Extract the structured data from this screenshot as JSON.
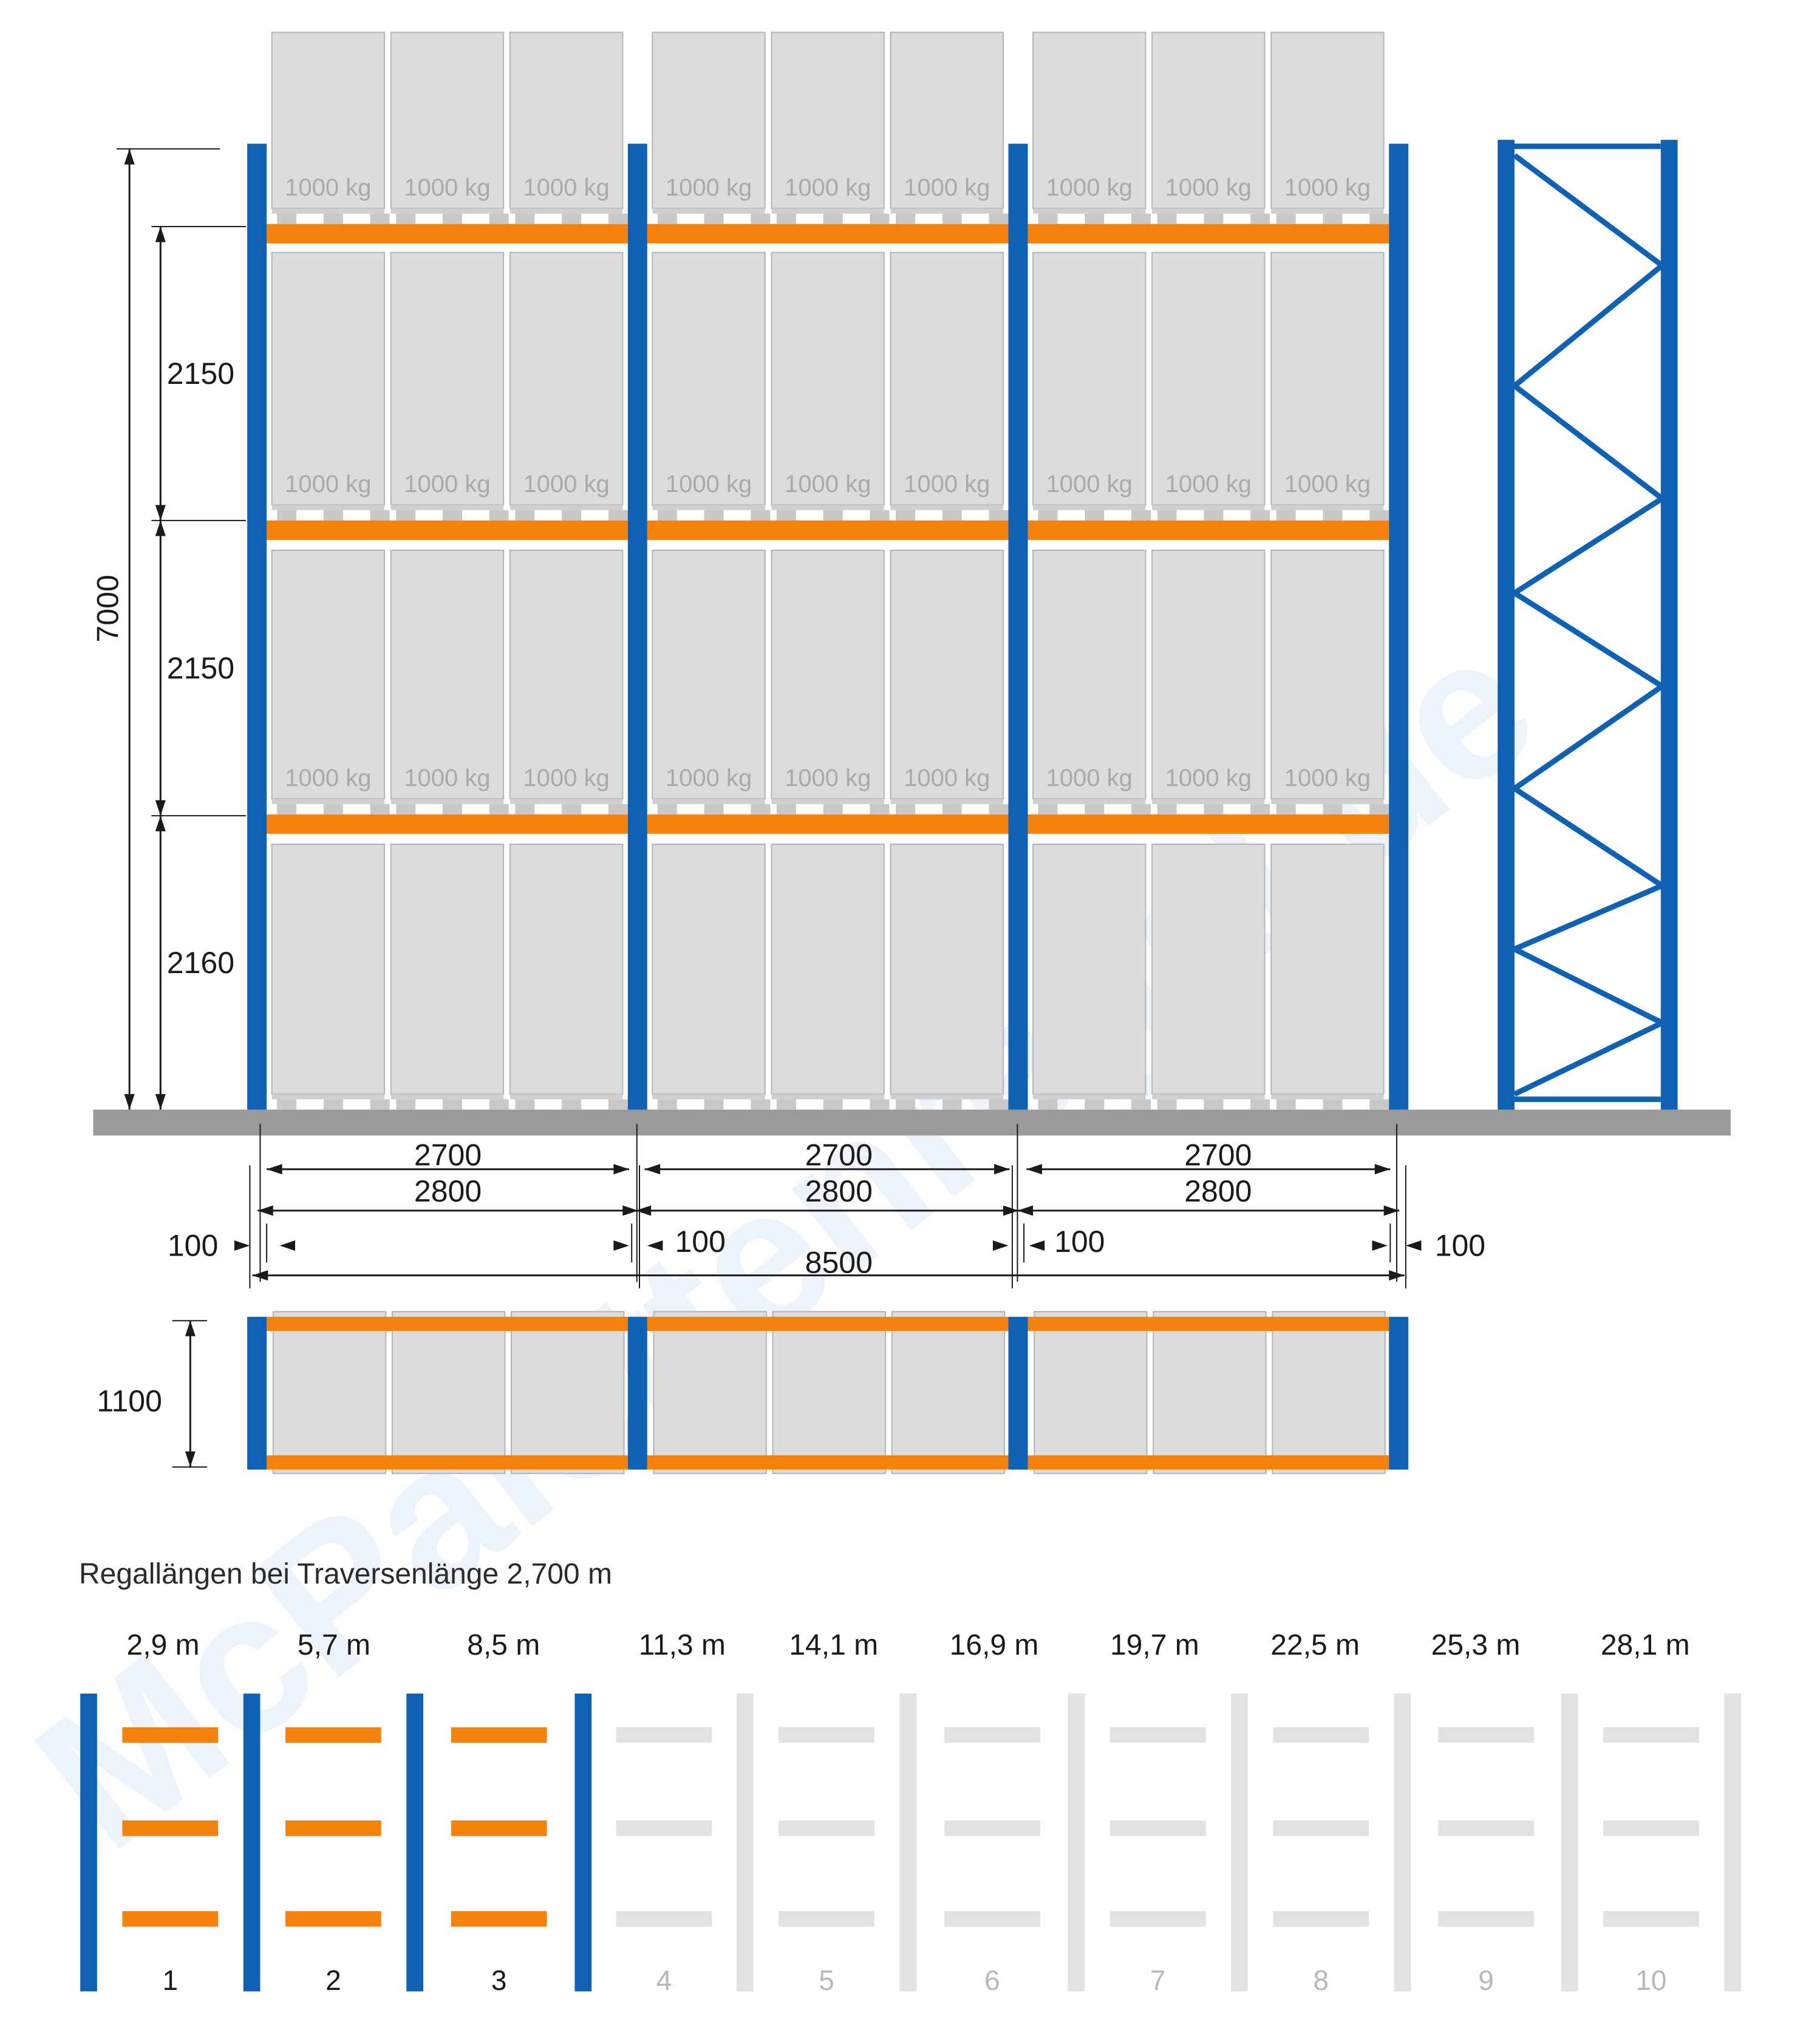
{
  "watermark": "McPalettenregal.de",
  "colors": {
    "upright": "#0f62b3",
    "beam": "#f5820d",
    "pallet": "#dcdcdc",
    "pallet_border": "#b4b4b4",
    "floor": "#9a9a9a",
    "inactive": "#e2e2e2",
    "dim_line": "#1a1a1a",
    "kg_text": "#a9a9a9"
  },
  "load_label": "1000 kg",
  "dimensions": {
    "total_height": "7000",
    "level_heights": [
      "2150",
      "2150",
      "2160"
    ],
    "beam_lengths": [
      "2700",
      "2700",
      "2700"
    ],
    "bay_widths": [
      "2800",
      "2800",
      "2800"
    ],
    "gaps": [
      "100",
      "100",
      "100",
      "100"
    ],
    "total_length": "8500",
    "depth": "1100"
  },
  "lengths_table": {
    "caption": "Regallängen bei Traversenlänge 2,700 m",
    "columns": [
      {
        "length": "2,9 m",
        "number": "1",
        "active": true
      },
      {
        "length": "5,7 m",
        "number": "2",
        "active": true
      },
      {
        "length": "8,5 m",
        "number": "3",
        "active": true
      },
      {
        "length": "11,3 m",
        "number": "4",
        "active": false
      },
      {
        "length": "14,1 m",
        "number": "5",
        "active": false
      },
      {
        "length": "16,9 m",
        "number": "6",
        "active": false
      },
      {
        "length": "19,7 m",
        "number": "7",
        "active": false
      },
      {
        "length": "22,5 m",
        "number": "8",
        "active": false
      },
      {
        "length": "25,3 m",
        "number": "9",
        "active": false
      },
      {
        "length": "28,1 m",
        "number": "10",
        "active": false
      }
    ]
  }
}
